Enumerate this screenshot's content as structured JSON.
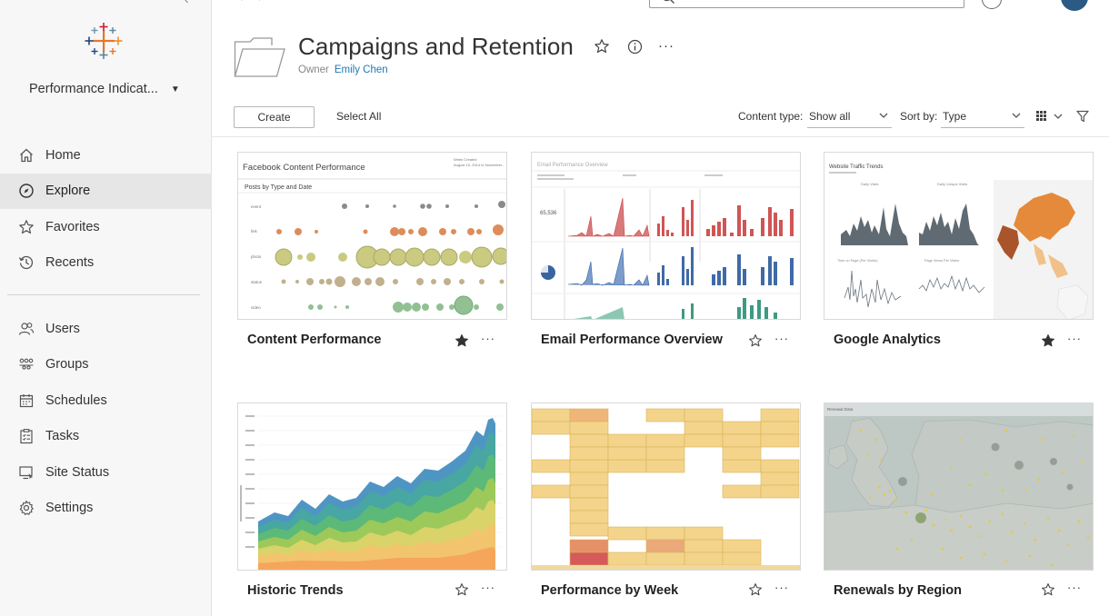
{
  "sidebar": {
    "site_name": "Performance Indicat...",
    "nav_primary": [
      {
        "label": "Home",
        "icon": "home-icon"
      },
      {
        "label": "Explore",
        "icon": "explore-icon"
      },
      {
        "label": "Favorites",
        "icon": "star-icon"
      },
      {
        "label": "Recents",
        "icon": "history-icon"
      }
    ],
    "nav_admin": [
      {
        "label": "Users",
        "icon": "users-icon"
      },
      {
        "label": "Groups",
        "icon": "groups-icon"
      },
      {
        "label": "Schedules",
        "icon": "calendar-icon"
      },
      {
        "label": "Tasks",
        "icon": "clipboard-icon"
      },
      {
        "label": "Site Status",
        "icon": "monitor-icon"
      },
      {
        "label": "Settings",
        "icon": "gear-icon"
      }
    ],
    "active_item": "Explore"
  },
  "header": {
    "title": "Campaigns and Retention",
    "owner_label": "Owner",
    "owner_name": "Emily Chen"
  },
  "toolbar": {
    "create_label": "Create",
    "select_all_label": "Select All",
    "content_type_label": "Content type:",
    "content_type_value": "Show all",
    "sort_by_label": "Sort by:",
    "sort_by_value": "Type"
  },
  "cards": [
    {
      "name": "Content Performance",
      "favorite": true,
      "thumb_title": "Facebook Content Performance",
      "thumb_subtitle": "Posts by Type and Date",
      "thumb_note": "Week Created",
      "thumb_note2": "August 10, 2014 to November...",
      "thumb_rows": [
        "event",
        "link",
        "photo",
        "status",
        "video"
      ]
    },
    {
      "name": "Email Performance Overview",
      "favorite": false,
      "thumb_title": "Email Performance Overview",
      "thumb_kpi": "65,536"
    },
    {
      "name": "Google Analytics",
      "favorite": true,
      "thumb_title": "Website Traffic Trends",
      "thumb_sub1": "Daily Visits",
      "thumb_sub2": "Daily Unique Visits",
      "thumb_sub3": "Time on Page (Per Visitor)",
      "thumb_sub4": "Page Views Per Visitor"
    },
    {
      "name": "Historic Trends",
      "favorite": false
    },
    {
      "name": "Performance by Week",
      "favorite": false
    },
    {
      "name": "Renewals by Region",
      "favorite": false,
      "thumb_title": "Renewal Data"
    }
  ],
  "colors": {
    "accent_blue": "#1f77b4",
    "active_nav_bg": "#e6e6e6",
    "avatar_bg": "#2b5b85"
  }
}
